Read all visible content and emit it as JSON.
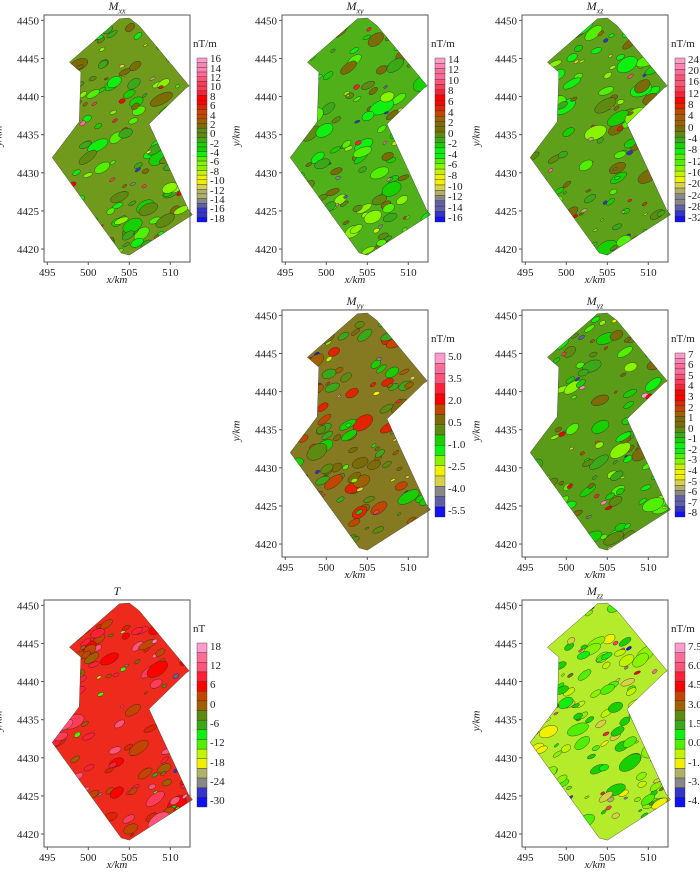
{
  "chart_data": [
    {
      "type": "heatmap",
      "title_main": "M",
      "title_sub": "xx",
      "xlabel": "x/km",
      "ylabel": "y/km",
      "xticks": [
        495,
        500,
        505,
        510
      ],
      "yticks": [
        4420,
        4425,
        4430,
        4435,
        4440,
        4445,
        4450
      ],
      "xlim": [
        494.6,
        512.4
      ],
      "ylim": [
        4418.3,
        4450.7
      ],
      "colorbar_unit": "nT/m",
      "colorbar_ticks": [
        "16",
        "14",
        "12",
        "10",
        "8",
        "6",
        "4",
        "2",
        "0",
        "-2",
        "-4",
        "-6",
        "-8",
        "-10",
        "-12",
        "-14",
        "-16",
        "-18"
      ],
      "base_color": "#6f9a1c"
    },
    {
      "type": "heatmap",
      "title_main": "M",
      "title_sub": "xy",
      "xlabel": "x/km",
      "ylabel": "y/km",
      "xticks": [
        495,
        500,
        505,
        510
      ],
      "yticks": [
        4420,
        4425,
        4430,
        4435,
        4440,
        4445,
        4450
      ],
      "xlim": [
        494.6,
        512.4
      ],
      "ylim": [
        4418.3,
        4450.7
      ],
      "colorbar_unit": "nT/m",
      "colorbar_ticks": [
        "14",
        "12",
        "10",
        "8",
        "6",
        "4",
        "2",
        "0",
        "-2",
        "-4",
        "-6",
        "-8",
        "-10",
        "-12",
        "-14",
        "-16"
      ],
      "base_color": "#4fb01a"
    },
    {
      "type": "heatmap",
      "title_main": "M",
      "title_sub": "xz",
      "xlabel": "x/km",
      "ylabel": "y/km",
      "xticks": [
        495,
        500,
        505,
        510
      ],
      "yticks": [
        4420,
        4425,
        4430,
        4435,
        4440,
        4445,
        4450
      ],
      "xlim": [
        494.6,
        512.4
      ],
      "ylim": [
        4418.3,
        4450.7
      ],
      "colorbar_unit": "nT/m",
      "colorbar_ticks": [
        "24",
        "20",
        "16",
        "12",
        "8",
        "4",
        "0",
        "-4",
        "-8",
        "-12",
        "-16",
        "-20",
        "-24",
        "-28",
        "-32"
      ],
      "base_color": "#5fa01a"
    },
    {
      "type": "heatmap",
      "title_main": "M",
      "title_sub": "yy",
      "xlabel": "x/km",
      "ylabel": "y/km",
      "xticks": [
        495,
        500,
        505,
        510
      ],
      "yticks": [
        4420,
        4425,
        4430,
        4435,
        4440,
        4445,
        4450
      ],
      "xlim": [
        494.6,
        512.4
      ],
      "ylim": [
        4418.3,
        4450.7
      ],
      "colorbar_unit": "nT/m",
      "colorbar_ticks": [
        "5.0",
        "3.5",
        "2.0",
        "0.5",
        "-1.0",
        "-2.5",
        "-4.0",
        "-5.5"
      ],
      "base_color": "#857a22"
    },
    {
      "type": "heatmap",
      "title_main": "M",
      "title_sub": "yz",
      "xlabel": "x/km",
      "ylabel": "y/km",
      "xticks": [
        495,
        500,
        505,
        510
      ],
      "yticks": [
        4420,
        4425,
        4430,
        4435,
        4440,
        4445,
        4450
      ],
      "xlim": [
        494.6,
        512.4
      ],
      "ylim": [
        4418.3,
        4450.7
      ],
      "colorbar_unit": "nT/m",
      "colorbar_ticks": [
        "7",
        "6",
        "5",
        "4",
        "3",
        "2",
        "1",
        "0",
        "-1",
        "-2",
        "-3",
        "-4",
        "-5",
        "-6",
        "-7",
        "-8"
      ],
      "base_color": "#5a9c18"
    },
    {
      "type": "heatmap",
      "title_main": "T",
      "title_sub": "",
      "xlabel": "x/km",
      "ylabel": "y/km",
      "xticks": [
        495,
        500,
        505,
        510
      ],
      "yticks": [
        4420,
        4425,
        4430,
        4435,
        4440,
        4445,
        4450
      ],
      "xlim": [
        494.6,
        512.4
      ],
      "ylim": [
        4418.3,
        4450.7
      ],
      "colorbar_unit": "nT",
      "colorbar_ticks": [
        "18",
        "12",
        "6",
        "0",
        "-6",
        "-12",
        "-18",
        "-24",
        "-30"
      ],
      "base_color": "#ee2a1c"
    },
    {
      "type": "heatmap",
      "title_main": "M",
      "title_sub": "zz",
      "xlabel": "x/km",
      "ylabel": "y/km",
      "xticks": [
        495,
        500,
        505,
        510
      ],
      "yticks": [
        4420,
        4425,
        4430,
        4435,
        4440,
        4445,
        4450
      ],
      "xlim": [
        494.6,
        512.4
      ],
      "ylim": [
        4418.3,
        4450.7
      ],
      "colorbar_unit": "nT/m",
      "colorbar_ticks": [
        "7.5",
        "6.0",
        "4.5",
        "3.0",
        "1.5",
        "0.0",
        "-1.5",
        "-3.0",
        "-4.5"
      ],
      "base_color": "#b4ec2c"
    }
  ]
}
